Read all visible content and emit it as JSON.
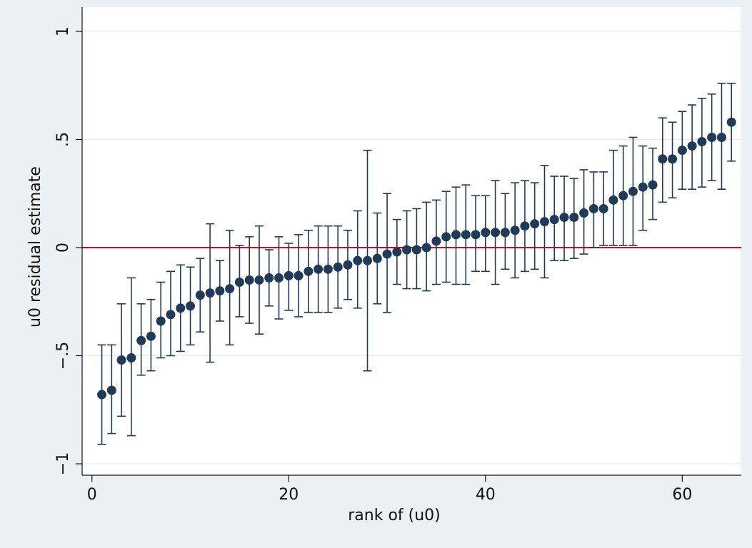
{
  "chart_data": {
    "type": "scatter",
    "title": "",
    "xlabel": "rank of (u0)",
    "ylabel": "u0 residual estimate",
    "xlim": [
      -1,
      66
    ],
    "ylim": [
      -1.06,
      1.0
    ],
    "x_ticks": [
      0,
      20,
      40,
      60
    ],
    "x_tick_labels": [
      "0",
      "20",
      "40",
      "60"
    ],
    "y_ticks": [
      -1,
      -0.5,
      0,
      0.5,
      1
    ],
    "y_tick_labels": [
      "−1",
      "−.5",
      "0",
      ".5",
      "1"
    ],
    "grid": "horizontal",
    "reference_line": {
      "y": 0,
      "color": "#c8102e"
    },
    "marker_color": "#1f3b57",
    "errorbar_color": "#1f3b57",
    "plot_background": "#ffffff",
    "outer_background": "#eaf0f3",
    "series": [
      {
        "x": [
          1,
          2,
          3,
          4,
          5,
          6,
          7,
          8,
          9,
          10,
          11,
          12,
          13,
          14,
          15,
          16,
          17,
          18,
          19,
          20,
          21,
          22,
          23,
          24,
          25,
          26,
          27,
          28,
          29,
          30,
          31,
          32,
          33,
          34,
          35,
          36,
          37,
          38,
          39,
          40,
          41,
          42,
          43,
          44,
          45,
          46,
          47,
          48,
          49,
          50,
          51,
          52,
          53,
          54,
          55,
          56,
          57,
          58,
          59,
          60,
          61,
          62,
          63,
          64,
          65
        ],
        "y": [
          -0.68,
          -0.66,
          -0.52,
          -0.51,
          -0.43,
          -0.41,
          -0.34,
          -0.31,
          -0.28,
          -0.27,
          -0.22,
          -0.21,
          -0.2,
          -0.19,
          -0.16,
          -0.15,
          -0.15,
          -0.14,
          -0.14,
          -0.13,
          -0.13,
          -0.11,
          -0.1,
          -0.1,
          -0.09,
          -0.08,
          -0.06,
          -0.06,
          -0.05,
          -0.03,
          -0.02,
          -0.01,
          -0.01,
          0.0,
          0.03,
          0.05,
          0.06,
          0.06,
          0.06,
          0.07,
          0.07,
          0.07,
          0.08,
          0.1,
          0.11,
          0.12,
          0.13,
          0.14,
          0.14,
          0.16,
          0.18,
          0.18,
          0.22,
          0.24,
          0.26,
          0.28,
          0.29,
          0.41,
          0.41,
          0.45,
          0.47,
          0.49,
          0.51,
          0.51,
          0.58
        ],
        "lower": [
          -0.91,
          -0.86,
          -0.78,
          -0.87,
          -0.59,
          -0.57,
          -0.51,
          -0.5,
          -0.48,
          -0.45,
          -0.39,
          -0.53,
          -0.34,
          -0.45,
          -0.32,
          -0.35,
          -0.4,
          -0.27,
          -0.33,
          -0.29,
          -0.32,
          -0.3,
          -0.3,
          -0.3,
          -0.28,
          -0.24,
          -0.28,
          -0.57,
          -0.26,
          -0.3,
          -0.17,
          -0.19,
          -0.19,
          -0.2,
          -0.17,
          -0.16,
          -0.17,
          -0.17,
          -0.11,
          -0.11,
          -0.17,
          -0.1,
          -0.14,
          -0.11,
          -0.1,
          -0.14,
          -0.06,
          -0.06,
          -0.05,
          -0.03,
          0.0,
          0.01,
          0.01,
          0.01,
          0.01,
          0.08,
          0.13,
          0.21,
          0.23,
          0.27,
          0.27,
          0.28,
          0.31,
          0.27,
          0.4
        ],
        "upper": [
          -0.45,
          -0.45,
          -0.26,
          -0.14,
          -0.26,
          -0.24,
          -0.16,
          -0.11,
          -0.08,
          -0.09,
          -0.05,
          0.11,
          -0.06,
          0.08,
          0.01,
          0.05,
          0.1,
          -0.01,
          0.05,
          0.02,
          0.06,
          0.08,
          0.1,
          0.1,
          0.1,
          0.08,
          0.17,
          0.45,
          0.16,
          0.25,
          0.13,
          0.17,
          0.18,
          0.21,
          0.22,
          0.26,
          0.28,
          0.29,
          0.24,
          0.24,
          0.31,
          0.25,
          0.3,
          0.31,
          0.3,
          0.38,
          0.33,
          0.33,
          0.32,
          0.36,
          0.35,
          0.35,
          0.45,
          0.47,
          0.51,
          0.47,
          0.46,
          0.6,
          0.58,
          0.63,
          0.66,
          0.69,
          0.71,
          0.76,
          0.76
        ]
      }
    ]
  }
}
